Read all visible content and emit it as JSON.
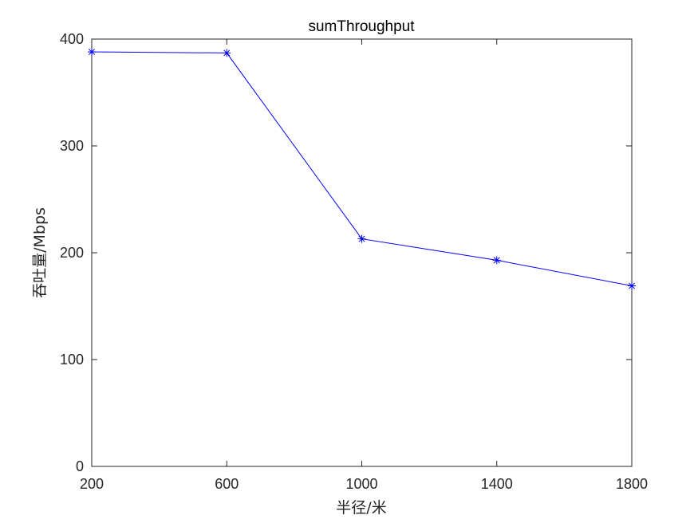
{
  "chart_data": {
    "type": "line",
    "title": "sumThroughput",
    "xlabel": "半径/米",
    "ylabel": "吞吐量/Mbps",
    "x": [
      200,
      600,
      1000,
      1400,
      1800
    ],
    "series": [
      {
        "values": [
          388,
          387,
          213,
          193,
          169
        ],
        "color": "#0000ff",
        "marker": "asterisk"
      }
    ],
    "xlim": [
      200,
      1800
    ],
    "ylim": [
      0,
      400
    ],
    "xticks": [
      200,
      600,
      1000,
      1400,
      1800
    ],
    "yticks": [
      0,
      100,
      200,
      300,
      400
    ],
    "grid": false,
    "legend": "none"
  }
}
